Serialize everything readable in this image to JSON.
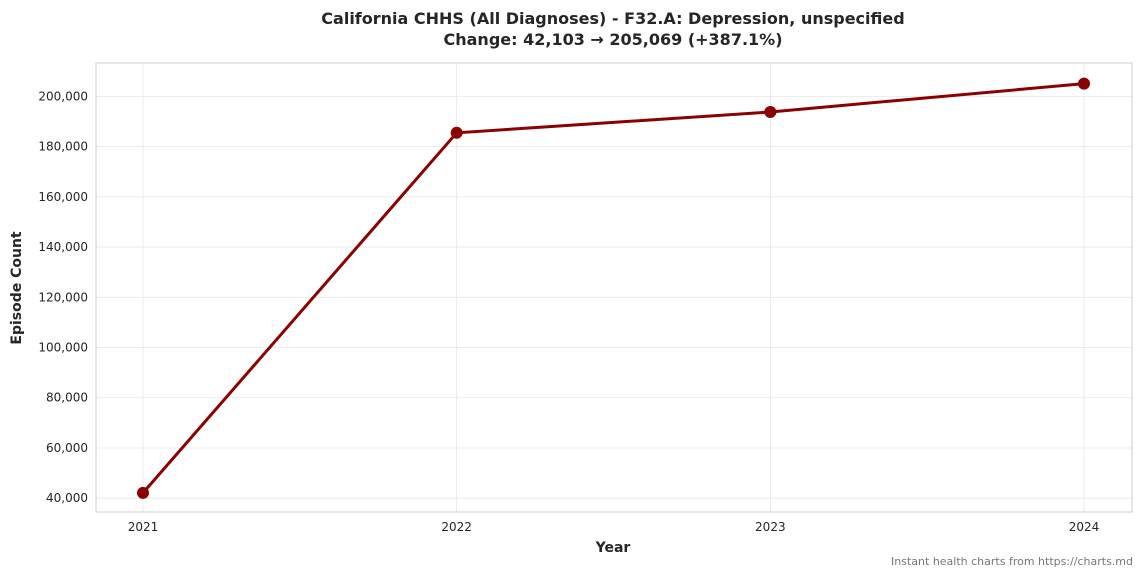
{
  "colors": {
    "series": "#8b0000",
    "grid": "#e6e6e6",
    "frame": "#cccccc",
    "text": "#262626",
    "footer": "#777777"
  },
  "footer_text": "Instant health charts from https://charts.md",
  "chart_data": {
    "type": "line",
    "title": "California CHHS (All Diagnoses) - F32.A: Depression, unspecified",
    "subtitle": "Change: 42,103 → 205,069 (+387.1%)",
    "xlabel": "Year",
    "ylabel": "Episode Count",
    "x": [
      "2021",
      "2022",
      "2023",
      "2024"
    ],
    "series": [
      {
        "values": [
          42103,
          185500,
          193800,
          205069
        ]
      }
    ],
    "ylim": [
      34500,
      213300
    ],
    "yticks": [
      40000,
      60000,
      80000,
      100000,
      120000,
      140000,
      160000,
      180000,
      200000
    ],
    "ytick_labels": [
      "40,000",
      "60,000",
      "80,000",
      "100,000",
      "120,000",
      "140,000",
      "160,000",
      "180,000",
      "200,000"
    ],
    "grid": true,
    "markers": true
  }
}
